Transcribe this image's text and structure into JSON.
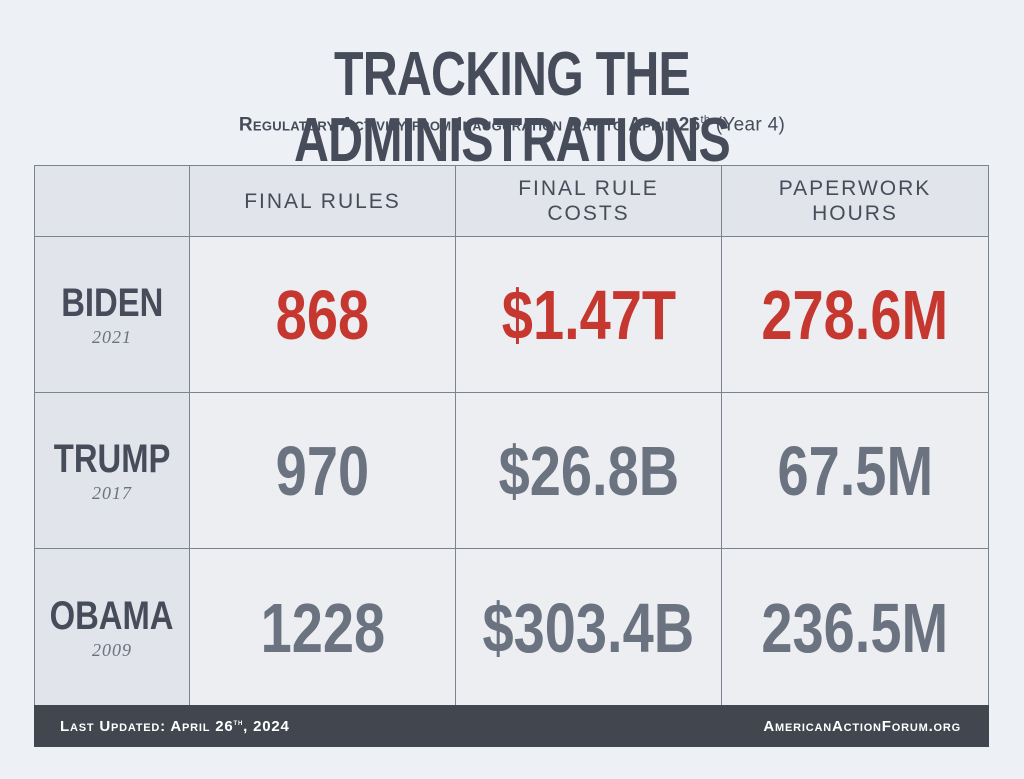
{
  "title": "TRACKING THE ADMINISTRATIONS",
  "subtitle": {
    "text": "Regulatory Activity from Inauguration Day to April 26",
    "sup": "th",
    "suffix": " (Year 4)"
  },
  "columns": [
    {
      "line1": "FINAL RULES",
      "line2": ""
    },
    {
      "line1": "FINAL RULE",
      "line2": "COSTS"
    },
    {
      "line1": "PAPERWORK",
      "line2": "HOURS"
    }
  ],
  "rows": [
    {
      "name": "BIDEN",
      "year": "2021",
      "values": [
        "868",
        "$1.47T",
        "278.6M"
      ],
      "highlight": true
    },
    {
      "name": "TRUMP",
      "year": "2017",
      "values": [
        "970",
        "$26.8B",
        "67.5M"
      ],
      "highlight": false
    },
    {
      "name": "OBAMA",
      "year": "2009",
      "values": [
        "1228",
        "$303.4B",
        "236.5M"
      ],
      "highlight": false
    }
  ],
  "footer": {
    "updated_prefix": "Last Updated: April 26",
    "updated_sup": "th",
    "updated_suffix": ", 2024",
    "site": "AmericanActionForum.org"
  },
  "colors": {
    "background": "#edf0f4",
    "text": "#464c5a",
    "highlight": "#c6382f",
    "value": "#6b7280",
    "footer": "#41464f"
  }
}
